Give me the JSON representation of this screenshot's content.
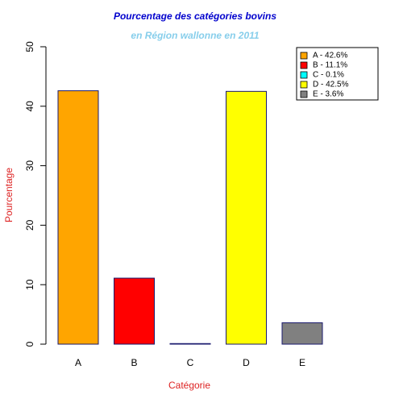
{
  "chart_data": {
    "type": "bar",
    "title": "Pourcentage des catégories bovins",
    "subtitle": "en Région wallonne en 2011",
    "x_label": "Catégorie",
    "y_label": "Pourcentage",
    "categories": [
      "A",
      "B",
      "C",
      "D",
      "E"
    ],
    "values": [
      42.6,
      11.1,
      0.1,
      42.5,
      3.6
    ],
    "colors": [
      "#ffa500",
      "#ff0000",
      "#00ffff",
      "#ffff00",
      "#808080"
    ],
    "legend_labels": [
      "A - 42.6%",
      "B - 11.1%",
      "C - 0.1%",
      "D - 42.5%",
      "E - 3.6%"
    ],
    "legend_position": "top-right",
    "ylim": [
      0,
      50
    ],
    "yticks": [
      0,
      10,
      20,
      30,
      40,
      50
    ]
  }
}
